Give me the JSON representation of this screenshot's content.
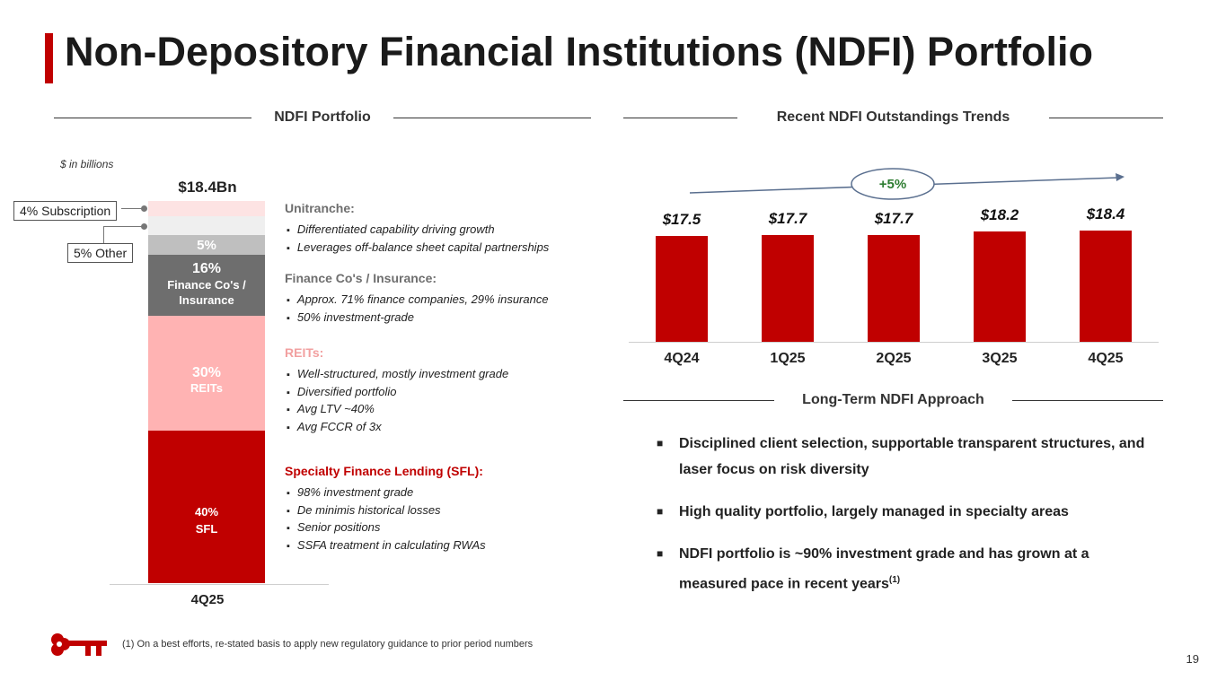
{
  "title": "Non-Depository Financial Institutions (NDFI) Portfolio",
  "left_section": {
    "header": "NDFI Portfolio",
    "units_note": "$ in billions",
    "total_label": "$18.4Bn",
    "x_label": "4Q25",
    "callouts": {
      "subscription": "4% Subscription",
      "other": "5% Other"
    },
    "segments": {
      "sfl": {
        "pct": "40%",
        "name": "SFL"
      },
      "reits": {
        "pct": "30%",
        "name": "REITs"
      },
      "finance": {
        "pct": "16%",
        "name": "Finance Co's / Insurance"
      },
      "unitranche": {
        "pct": "5%"
      }
    },
    "blocks": [
      {
        "title": "Unitranche",
        "bullets": [
          "Differentiated capability driving growth",
          "Leverages off-balance sheet capital partnerships"
        ]
      },
      {
        "title": "Finance Co's / Insurance",
        "bullets": [
          "Approx. 71% finance companies, 29% insurance",
          "50% investment-grade"
        ]
      },
      {
        "title": "REITs",
        "bullets": [
          "Well-structured, mostly investment grade",
          "Diversified portfolio",
          "Avg LTV ~40%",
          "Avg FCCR of 3x"
        ]
      },
      {
        "title": "Specialty Finance Lending (SFL)",
        "bullets": [
          "98% investment grade",
          "De minimis historical losses",
          "Senior positions",
          "SSFA treatment in calculating RWAs"
        ]
      }
    ]
  },
  "right_section": {
    "trend_header": "Recent NDFI Outstandings Trends",
    "growth_label": "+5%",
    "approach_header": "Long-Term NDFI Approach",
    "approach_bullets": [
      {
        "text": "Disciplined client selection, supportable transparent structures, and laser focus on risk diversity",
        "sup": ""
      },
      {
        "text": "High quality portfolio, largely managed in specialty areas",
        "sup": ""
      },
      {
        "text": "NDFI portfolio is ~90% investment grade and has grown at a measured pace in recent years",
        "sup": "(1)"
      }
    ]
  },
  "footnote": "(1) On a best efforts, re-stated basis to apply new regulatory guidance to prior period numbers",
  "page_number": "19",
  "colors": {
    "accent": "#c00000",
    "reits": "#ffb3b3",
    "finance": "#6e6e6e",
    "unitranche": "#bfbfbf",
    "other": "#efefef",
    "subscription": "#fde3e3"
  },
  "chart_data": [
    {
      "type": "bar",
      "stacked": true,
      "categories": [
        "4Q25"
      ],
      "series": [
        {
          "name": "SFL",
          "values": [
            40
          ]
        },
        {
          "name": "REITs",
          "values": [
            30
          ]
        },
        {
          "name": "Finance Co's / Insurance",
          "values": [
            16
          ]
        },
        {
          "name": "Unitranche",
          "values": [
            5
          ]
        },
        {
          "name": "Other",
          "values": [
            5
          ]
        },
        {
          "name": "Subscription",
          "values": [
            4
          ]
        }
      ],
      "total": 18.4,
      "ylim": [
        0,
        100
      ]
    },
    {
      "type": "bar",
      "categories": [
        "4Q24",
        "1Q25",
        "2Q25",
        "3Q25",
        "4Q25"
      ],
      "values": [
        17.5,
        17.7,
        17.7,
        18.2,
        18.4
      ],
      "value_labels": [
        "$17.5",
        "$17.7",
        "$17.7",
        "$18.2",
        "$18.4"
      ],
      "ylim": [
        0,
        18.4
      ]
    }
  ]
}
